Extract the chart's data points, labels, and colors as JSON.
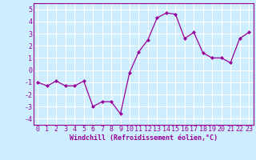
{
  "x": [
    0,
    1,
    2,
    3,
    4,
    5,
    6,
    7,
    8,
    9,
    10,
    11,
    12,
    13,
    14,
    15,
    16,
    17,
    18,
    19,
    20,
    21,
    22,
    23
  ],
  "y": [
    -1,
    -1.3,
    -0.9,
    -1.3,
    -1.3,
    -0.9,
    -3.0,
    -2.6,
    -2.6,
    -3.6,
    -0.2,
    1.5,
    2.5,
    4.3,
    4.7,
    4.6,
    2.6,
    3.1,
    1.4,
    1.0,
    1.0,
    0.6,
    2.6,
    3.1
  ],
  "line_color": "#990099",
  "marker": "D",
  "marker_size": 2.0,
  "bg_color": "#cceeff",
  "grid_color": "#aaddee",
  "xlabel": "Windchill (Refroidissement éolien,°C)",
  "xlabel_color": "#990099",
  "tick_color": "#990099",
  "spine_color": "#990099",
  "ylim": [
    -4.5,
    5.5
  ],
  "xlim": [
    -0.5,
    23.5
  ],
  "yticks": [
    -4,
    -3,
    -2,
    -1,
    0,
    1,
    2,
    3,
    4,
    5
  ],
  "xticks": [
    0,
    1,
    2,
    3,
    4,
    5,
    6,
    7,
    8,
    9,
    10,
    11,
    12,
    13,
    14,
    15,
    16,
    17,
    18,
    19,
    20,
    21,
    22,
    23
  ],
  "tick_fontsize": 6.0,
  "xlabel_fontsize": 6.0
}
